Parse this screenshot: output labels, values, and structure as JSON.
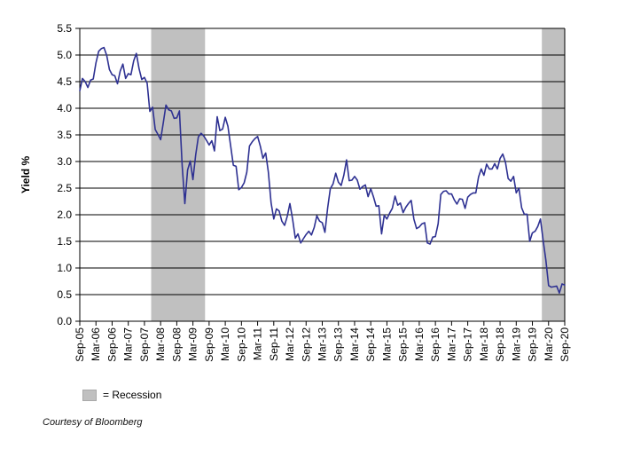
{
  "chart_data": {
    "type": "line",
    "title": "",
    "xlabel": "",
    "ylabel": "Yield %",
    "ylim": [
      0,
      5.5
    ],
    "y_tick_step": 0.5,
    "frequency": "monthly",
    "x_range": {
      "start": "Sep-05",
      "end": "Sep-20"
    },
    "x_tick_labels": [
      "Sep-05",
      "Mar-06",
      "Sep-06",
      "Mar-07",
      "Sep-07",
      "Mar-08",
      "Sep-08",
      "Mar-09",
      "Sep-09",
      "Mar-10",
      "Sep-10",
      "Mar-11",
      "Sep-11",
      "Mar-12",
      "Sep-12",
      "Mar-13",
      "Sep-13",
      "Mar-14",
      "Sep-14",
      "Mar-15",
      "Sep-15",
      "Mar-16",
      "Sep-16",
      "Mar-17",
      "Sep-17",
      "Mar-18",
      "Sep-18",
      "Mar-19",
      "Sep-19",
      "Mar-20",
      "Sep-20"
    ],
    "series": [
      {
        "name": "Yield %",
        "values": [
          4.33,
          4.56,
          4.5,
          4.39,
          4.53,
          4.55,
          4.85,
          5.07,
          5.12,
          5.14,
          4.99,
          4.73,
          4.63,
          4.61,
          4.46,
          4.7,
          4.83,
          4.56,
          4.65,
          4.63,
          4.89,
          5.03,
          4.74,
          4.54,
          4.58,
          4.47,
          3.94,
          4.02,
          3.6,
          3.51,
          3.41,
          3.73,
          4.06,
          3.97,
          3.95,
          3.81,
          3.82,
          3.95,
          2.92,
          2.21,
          2.84,
          3.01,
          2.66,
          3.12,
          3.46,
          3.53,
          3.48,
          3.4,
          3.31,
          3.39,
          3.2,
          3.84,
          3.58,
          3.61,
          3.83,
          3.66,
          3.29,
          2.93,
          2.91,
          2.47,
          2.51,
          2.6,
          2.8,
          3.29,
          3.37,
          3.43,
          3.47,
          3.29,
          3.06,
          3.16,
          2.8,
          2.22,
          1.92,
          2.11,
          2.07,
          1.88,
          1.8,
          1.97,
          2.21,
          1.91,
          1.56,
          1.64,
          1.47,
          1.55,
          1.63,
          1.69,
          1.62,
          1.76,
          1.98,
          1.88,
          1.85,
          1.67,
          2.13,
          2.49,
          2.58,
          2.78,
          2.61,
          2.55,
          2.74,
          3.03,
          2.64,
          2.65,
          2.72,
          2.65,
          2.48,
          2.53,
          2.56,
          2.34,
          2.49,
          2.34,
          2.16,
          2.17,
          1.64,
          1.99,
          1.92,
          2.03,
          2.12,
          2.35,
          2.18,
          2.22,
          2.04,
          2.14,
          2.21,
          2.27,
          1.92,
          1.74,
          1.77,
          1.83,
          1.85,
          1.47,
          1.45,
          1.58,
          1.59,
          1.83,
          2.38,
          2.44,
          2.45,
          2.39,
          2.39,
          2.28,
          2.2,
          2.3,
          2.29,
          2.12,
          2.33,
          2.38,
          2.41,
          2.41,
          2.71,
          2.86,
          2.74,
          2.95,
          2.86,
          2.86,
          2.96,
          2.86,
          3.06,
          3.14,
          2.99,
          2.68,
          2.63,
          2.72,
          2.41,
          2.5,
          2.13,
          2.01,
          2.01,
          1.5,
          1.66,
          1.69,
          1.78,
          1.92,
          1.51,
          1.15,
          0.67,
          0.64,
          0.65,
          0.66,
          0.53,
          0.7,
          0.68
        ]
      }
    ],
    "recession_bands": [
      {
        "start": "Dec-07",
        "end": "Jun-09",
        "from_month": 26.5,
        "to_month": 46.5
      },
      {
        "start": "Jan-20",
        "end": "Sep-20",
        "from_month": 171.5,
        "to_month": 180
      }
    ],
    "legend": {
      "label": "= Recession"
    },
    "footnote": "Courtesy of Bloomberg",
    "colors": {
      "line": "#2e3192",
      "recession_fill": "#c0c0c0",
      "grid": "#000000",
      "axis": "#000000"
    },
    "grid": "horizontal-only",
    "legend_position": "bottom-left"
  }
}
